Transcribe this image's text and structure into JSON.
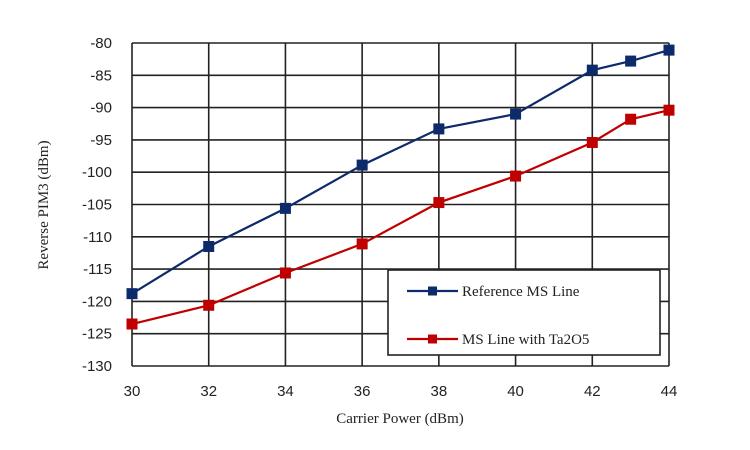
{
  "chart_data": {
    "type": "line",
    "title": "",
    "xlabel": "Carrier Power (dBm)",
    "ylabel": "Reverse PIM3 (dBm)",
    "x": [
      30,
      32,
      34,
      36,
      38,
      40,
      42,
      43,
      44
    ],
    "xlim": [
      30,
      44
    ],
    "ylim": [
      -130,
      -80
    ],
    "xticks": [
      30,
      32,
      34,
      36,
      38,
      40,
      42,
      44
    ],
    "yticks": [
      -80,
      -85,
      -90,
      -95,
      -100,
      -105,
      -110,
      -115,
      -120,
      -125,
      -130
    ],
    "grid": true,
    "legend_position": "lower right (inside)",
    "series": [
      {
        "name": "Reference MS Line",
        "color": "#0d2a6b",
        "marker": "square",
        "values": [
          -118.8,
          -111.5,
          -105.6,
          -98.9,
          -93.3,
          -91.0,
          -84.2,
          -82.8,
          -81.1
        ]
      },
      {
        "name": "MS Line with Ta2O5",
        "color": "#c00000",
        "marker": "square",
        "values": [
          -123.5,
          -120.6,
          -115.6,
          -111.1,
          -104.7,
          -100.6,
          -95.4,
          -91.8,
          -90.4
        ]
      }
    ]
  }
}
